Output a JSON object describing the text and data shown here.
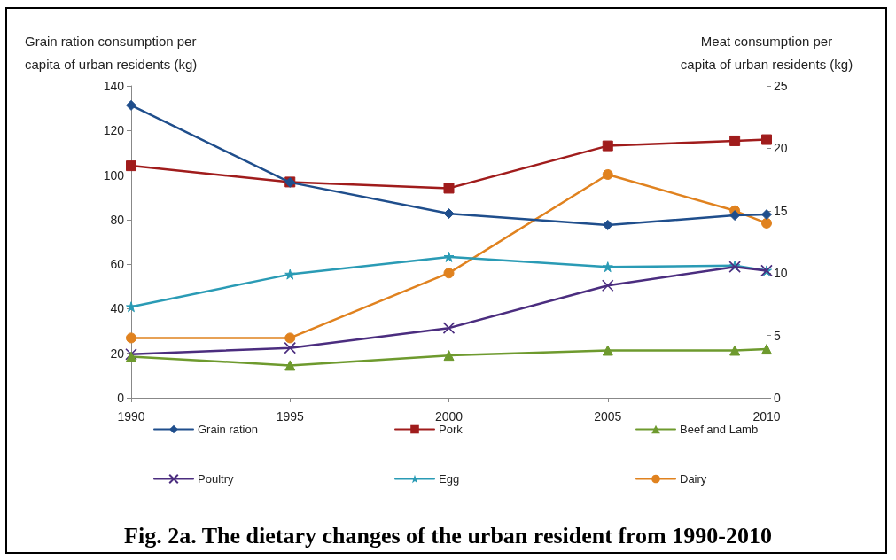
{
  "chart_data": {
    "type": "line",
    "title": "Fig. 2a. The dietary changes of the urban resident from 1990-2010",
    "ylabel": "Grain ration consumption per\ncapita of urban residents (kg)",
    "y2label": "Meat consumption per\ncapita of urban residents (kg)",
    "x": [
      1990,
      1995,
      2000,
      2005,
      2009,
      2010
    ],
    "xlim": [
      1990,
      2010
    ],
    "xticks": [
      1990,
      1995,
      2000,
      2005,
      2010
    ],
    "ylim": [
      0,
      140
    ],
    "yticks": [
      0,
      20,
      40,
      60,
      80,
      100,
      120,
      140
    ],
    "y2lim": [
      0,
      25
    ],
    "y2ticks": [
      0,
      5,
      10,
      15,
      20,
      25
    ],
    "grid": false,
    "legend": "bottom",
    "line_style": "solid",
    "series": [
      {
        "name": "Grain ration",
        "color": "#1f4e8c",
        "marker": "diamond",
        "values": [
          131.3,
          96.7,
          82.7,
          77.6,
          81.9,
          82.3
        ]
      },
      {
        "name": "Pork",
        "color": "#a01c1c",
        "marker": "square",
        "axis": "y2",
        "values": [
          18.6,
          17.3,
          16.8,
          20.2,
          20.6,
          20.7
        ]
      },
      {
        "name": "Beef and Lamb",
        "color": "#6e9a2e",
        "marker": "triangle",
        "axis": "y2",
        "values": [
          3.3,
          2.6,
          3.4,
          3.8,
          3.8,
          3.9
        ]
      },
      {
        "name": "Poultry",
        "color": "#4b2d7f",
        "marker": "cross",
        "axis": "y2",
        "values": [
          3.5,
          4.0,
          5.6,
          9.0,
          10.5,
          10.2
        ]
      },
      {
        "name": "Egg",
        "color": "#2a9bb5",
        "marker": "star",
        "axis": "y2",
        "values": [
          7.3,
          9.9,
          11.3,
          10.5,
          10.6,
          10.2
        ]
      },
      {
        "name": "Dairy",
        "color": "#e0821f",
        "marker": "circle",
        "axis": "y2",
        "values": [
          4.8,
          4.8,
          10.0,
          17.9,
          15.0,
          14.0
        ]
      }
    ]
  }
}
